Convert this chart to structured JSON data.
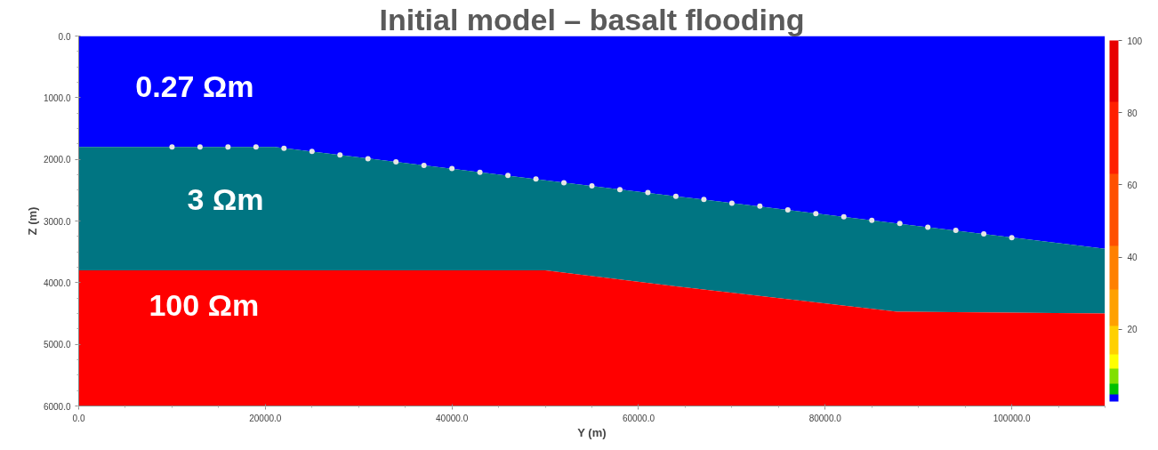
{
  "chart_data": {
    "type": "area",
    "stacked": true,
    "title": "Initial model – basalt flooding",
    "xlabel": "Y (m)",
    "ylabel": "Z (m)",
    "x": [
      0,
      21000,
      50000,
      65700,
      87700,
      110000
    ],
    "series": [
      {
        "color": "#0000ff",
        "values": [
          1800,
          1800,
          2340,
          2630,
          3040,
          3450
        ]
      },
      {
        "color": "#007582",
        "values": [
          2000,
          2000,
          1460,
          1460,
          1430,
          1050
        ]
      },
      {
        "color": "#ff0000",
        "values": [
          2200,
          2200,
          2200,
          1910,
          1530,
          1500
        ]
      },
      {
        "type": "scatter",
        "marker": "circle",
        "color": "#e6e6e6",
        "x": [
          10000,
          13000,
          16000,
          19000,
          22000,
          25000,
          28000,
          31000,
          34000,
          37000,
          40000,
          43000,
          46000,
          49000,
          52000,
          55000,
          58000,
          61000,
          64000,
          67000,
          70000,
          73000,
          76000,
          79000,
          82000,
          85000,
          88000,
          91000,
          94000,
          97000,
          100000
        ],
        "values": [
          1800,
          1800,
          1800,
          1800,
          1820,
          1870,
          1930,
          1990,
          2040,
          2100,
          2150,
          2210,
          2260,
          2320,
          2380,
          2430,
          2490,
          2540,
          2600,
          2650,
          2710,
          2760,
          2820,
          2880,
          2930,
          2990,
          3040,
          3100,
          3150,
          3210,
          3270
        ]
      }
    ],
    "xlim": [
      0,
      110000
    ],
    "ylim": [
      6000,
      0
    ],
    "xticks": [
      {
        "value": 0,
        "label": "0.0"
      },
      {
        "value": 20000,
        "label": "20000.0"
      },
      {
        "value": 40000,
        "label": "40000.0"
      },
      {
        "value": 60000,
        "label": "60000.0"
      },
      {
        "value": 80000,
        "label": "80000.0"
      },
      {
        "value": 100000,
        "label": "100000.0"
      }
    ],
    "yticks": [
      {
        "value": 0,
        "label": "0.0"
      },
      {
        "value": 1000,
        "label": "1000.0"
      },
      {
        "value": 2000,
        "label": "2000.0"
      },
      {
        "value": 3000,
        "label": "3000.0"
      },
      {
        "value": 4000,
        "label": "4000.0"
      },
      {
        "value": 5000,
        "label": "5000.0"
      },
      {
        "value": 6000,
        "label": "6000.0"
      }
    ],
    "clim": [
      0,
      100
    ],
    "cticks": [
      20,
      40,
      60,
      80,
      100
    ],
    "grid": false,
    "annotations": [
      "0.27 Ωm",
      "3 Ωm",
      "100 Ωm"
    ]
  }
}
